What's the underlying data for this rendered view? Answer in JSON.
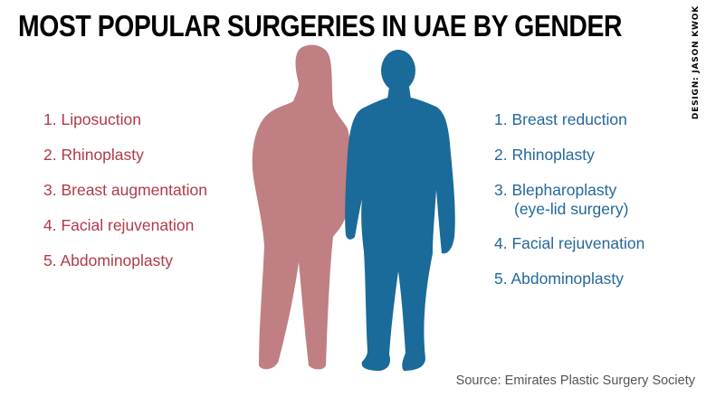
{
  "title": "MOST POPULAR SURGERIES IN UAE BY GENDER",
  "credit": "DESIGN: JASON KWOK",
  "colors": {
    "women": "#c07f83",
    "men": "#1a6a9a",
    "women_text": "#b03a48",
    "men_text": "#24689b"
  },
  "women": {
    "items": [
      "1. Liposuction",
      "2. Rhinoplasty",
      "3. Breast augmentation",
      "4. Facial rejuvenation",
      "5. Abdominoplasty"
    ]
  },
  "men": {
    "items": [
      "1. Breast reduction",
      "2. Rhinoplasty",
      "3. Blepharoplasty",
      "(eye-lid surgery)",
      "4. Facial rejuvenation",
      "5. Abdominoplasty"
    ]
  },
  "source": "Source: Emirates Plastic Surgery Society"
}
